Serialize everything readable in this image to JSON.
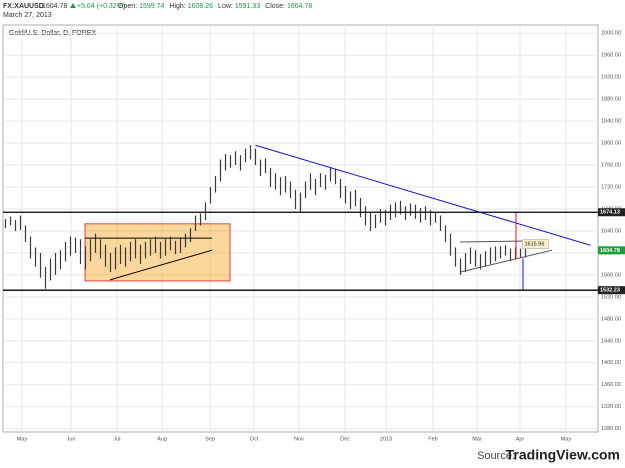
{
  "header": {
    "symbol": "FX:XAUUSD",
    "last": "1604.78",
    "change": "+5.04 (+0.32%)",
    "fields": [
      {
        "label": "Open:",
        "value": "1599.74"
      },
      {
        "label": "High:",
        "value": "1608.26"
      },
      {
        "label": "Low:",
        "value": "1591.33"
      },
      {
        "label": "Close:",
        "value": "1604.78"
      }
    ],
    "date": "March 27, 2013"
  },
  "source": {
    "prefix": "Source:",
    "name": "TradingView.com"
  },
  "chart_data": {
    "type": "range",
    "title": "Gold/U.S. Dollar, D, FOREX",
    "color": "#3a3a3a",
    "grid": true,
    "xlim": [
      -0.5,
      118.5
    ],
    "ylim": [
      1274,
      2015
    ],
    "xticks": [
      {
        "value": 3.3,
        "label": "May"
      },
      {
        "value": 13.1,
        "label": "Jun"
      },
      {
        "value": 22.3,
        "label": "Jul"
      },
      {
        "value": 31.3,
        "label": "Aug"
      },
      {
        "value": 40.9,
        "label": "Sep"
      },
      {
        "value": 49.7,
        "label": "Oct"
      },
      {
        "value": 58.7,
        "label": "Nov"
      },
      {
        "value": 67.9,
        "label": "Dec"
      },
      {
        "value": 76.1,
        "label": "2013"
      },
      {
        "value": 85.5,
        "label": "Feb"
      },
      {
        "value": 94.3,
        "label": "Mar"
      },
      {
        "value": 102.9,
        "label": "Apr"
      },
      {
        "value": 112.1,
        "label": "May"
      }
    ],
    "yticks": [
      {
        "value": 1280,
        "label": "1280.00"
      },
      {
        "value": 1320,
        "label": "1320.00"
      },
      {
        "value": 1360,
        "label": "1360.00"
      },
      {
        "value": 1400,
        "label": "1400.00"
      },
      {
        "value": 1440,
        "label": "1440.00"
      },
      {
        "value": 1480,
        "label": "1480.00"
      },
      {
        "value": 1520,
        "label": "1520.00"
      },
      {
        "value": 1560,
        "label": "1560.00"
      },
      {
        "value": 1600,
        "label": "1600.00"
      },
      {
        "value": 1640,
        "label": "1640.00"
      },
      {
        "value": 1680,
        "label": "1680.00"
      },
      {
        "value": 1720,
        "label": "1720.00"
      },
      {
        "value": 1760,
        "label": "1760.00"
      },
      {
        "value": 1800,
        "label": "1800.00"
      },
      {
        "value": 1840,
        "label": "1840.00"
      },
      {
        "value": 1880,
        "label": "1880.00"
      },
      {
        "value": 1920,
        "label": "1920.00"
      },
      {
        "value": 1960,
        "label": "1960.00"
      },
      {
        "value": 2000,
        "label": "2000.00"
      }
    ],
    "low": [
      1645,
      1650,
      1640,
      1642,
      1620,
      1590,
      1575,
      1555,
      1535,
      1550,
      1560,
      1570,
      1585,
      1595,
      1600,
      1580,
      1570,
      1585,
      1600,
      1590,
      1575,
      1565,
      1570,
      1580,
      1575,
      1585,
      1590,
      1580,
      1590,
      1595,
      1600,
      1590,
      1595,
      1605,
      1598,
      1600,
      1610,
      1620,
      1640,
      1650,
      1660,
      1690,
      1710,
      1730,
      1750,
      1755,
      1760,
      1750,
      1765,
      1770,
      1760,
      1740,
      1745,
      1720,
      1715,
      1705,
      1710,
      1700,
      1680,
      1675,
      1700,
      1715,
      1705,
      1720,
      1715,
      1730,
      1725,
      1700,
      1690,
      1680,
      1685,
      1665,
      1650,
      1640,
      1645,
      1655,
      1650,
      1660,
      1665,
      1670,
      1660,
      1668,
      1662,
      1655,
      1660,
      1650,
      1655,
      1640,
      1620,
      1595,
      1575,
      1560,
      1565,
      1580,
      1575,
      1570,
      1575,
      1580,
      1585,
      1590,
      1595,
      1585,
      1590,
      1591,
      1591.33
    ],
    "high": [
      1662,
      1666,
      1660,
      1668,
      1650,
      1630,
      1610,
      1600,
      1575,
      1590,
      1600,
      1605,
      1620,
      1630,
      1628,
      1625,
      1612,
      1625,
      1635,
      1625,
      1615,
      1600,
      1610,
      1615,
      1610,
      1620,
      1625,
      1615,
      1620,
      1625,
      1630,
      1620,
      1625,
      1630,
      1622,
      1628,
      1635,
      1645,
      1668,
      1672,
      1692,
      1720,
      1740,
      1770,
      1780,
      1778,
      1785,
      1778,
      1790,
      1796,
      1790,
      1770,
      1772,
      1755,
      1745,
      1738,
      1740,
      1730,
      1715,
      1710,
      1730,
      1745,
      1735,
      1745,
      1742,
      1755,
      1752,
      1735,
      1722,
      1712,
      1715,
      1700,
      1685,
      1675,
      1670,
      1680,
      1678,
      1688,
      1692,
      1695,
      1685,
      1690,
      1688,
      1682,
      1685,
      1678,
      1675,
      1668,
      1650,
      1635,
      1610,
      1590,
      1600,
      1610,
      1605,
      1598,
      1603,
      1610,
      1612,
      1612,
      1614,
      1608,
      1610,
      1608,
      1608.26
    ],
    "levels": [
      {
        "value": 1674.13,
        "color": "#000000"
      },
      {
        "value": 1532.23,
        "color": "#000000"
      }
    ],
    "last_price": 1604.78,
    "last_color": "#1a9e3c",
    "annotation": {
      "x": 103.4,
      "y": 1615.96
    },
    "drawings": [
      {
        "kind": "rect",
        "x": [
          15.9,
          44.9
        ],
        "y": [
          1549,
          1653
        ],
        "color": "#f5a623"
      },
      {
        "kind": "line",
        "x": [
          50,
          117
        ],
        "y": [
          1796,
          1614
        ],
        "color": "#1515c8"
      },
      {
        "kind": "line",
        "x": [
          20.9,
          41.3
        ],
        "y": [
          1551,
          1605
        ],
        "color": "#000000"
      },
      {
        "kind": "line",
        "x": [
          15.9,
          41.3
        ],
        "y": [
          1627,
          1627
        ],
        "color": "#000000"
      },
      {
        "kind": "line",
        "x": [
          90.9,
          109.3
        ],
        "y": [
          1565,
          1605
        ],
        "color": "#555555"
      },
      {
        "kind": "line",
        "x": [
          90.9,
          106.3
        ],
        "y": [
          1620,
          1622
        ],
        "color": "#555555"
      },
      {
        "kind": "line",
        "x": [
          102.1,
          102.1
        ],
        "y": [
          1674,
          1590
        ],
        "color": "#e8141b"
      },
      {
        "kind": "line",
        "x": [
          103.5,
          103.5
        ],
        "y": [
          1590,
          1532
        ],
        "color": "#1515c8"
      }
    ]
  }
}
